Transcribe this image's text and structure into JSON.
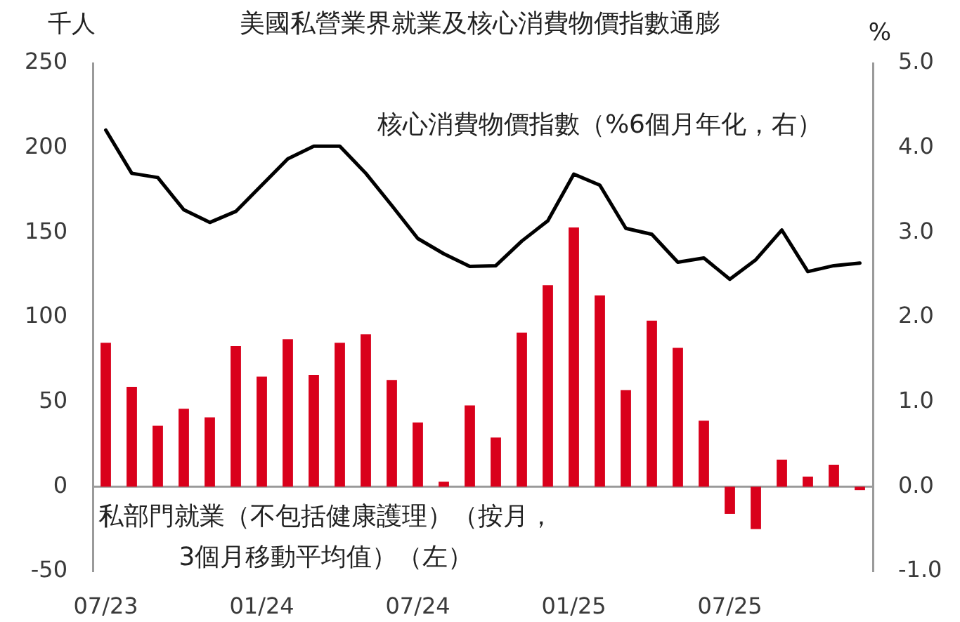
{
  "chart_data": {
    "type": "bar",
    "title": "美國私營業界就業及核心消費物價指數通膨",
    "ylabel": "千人",
    "y2label": "%",
    "categories": [
      "07/23",
      null,
      null,
      null,
      null,
      null,
      "01/24",
      null,
      null,
      null,
      null,
      null,
      "07/24",
      null,
      null,
      null,
      null,
      null,
      "01/25",
      null,
      null,
      null,
      null,
      null,
      "07/25",
      null,
      null,
      null,
      null,
      null
    ],
    "series": [
      {
        "name": "私部門就業（不包括健康護理）（按月，3個月移動平均值）（左）",
        "color": "#d9001b",
        "values": [
          85,
          59,
          36,
          46,
          41,
          83,
          65,
          87,
          66,
          85,
          90,
          63,
          38,
          3,
          48,
          29,
          91,
          119,
          153,
          113,
          57,
          98,
          82,
          39,
          -16,
          -25,
          16,
          6,
          13,
          -2
        ]
      },
      {
        "name": "核心消費物價指數（%6個月年化，右）",
        "type": "line",
        "axis": "y2",
        "color": "#000000",
        "values": [
          4.21,
          3.7,
          3.65,
          3.27,
          3.12,
          3.25,
          3.56,
          3.87,
          4.02,
          4.02,
          3.7,
          3.32,
          2.93,
          2.75,
          2.6,
          2.61,
          2.9,
          3.14,
          3.69,
          3.56,
          3.05,
          2.98,
          2.65,
          2.7,
          2.45,
          2.68,
          3.03,
          2.54,
          2.61,
          2.64
        ]
      }
    ],
    "ylim": [
      -50,
      250
    ],
    "yticks": [
      -50,
      0,
      50,
      100,
      150,
      200,
      250
    ],
    "y2lim": [
      -1,
      5
    ],
    "y2ticks": [
      {
        "value": -1,
        "label": "-1.0"
      },
      {
        "value": 0,
        "label": "0.0"
      },
      {
        "value": 1,
        "label": "1.0"
      },
      {
        "value": 2,
        "label": "2.0"
      },
      {
        "value": 3,
        "label": "3.0"
      },
      {
        "value": 4,
        "label": "4.0"
      },
      {
        "value": 5,
        "label": "5.0"
      }
    ],
    "ref_lines": [
      {
        "axis": "y",
        "value": 0,
        "color": "#9a9a9a"
      }
    ],
    "grid": false,
    "legend": false,
    "marker": "none",
    "line_style": "solid"
  }
}
